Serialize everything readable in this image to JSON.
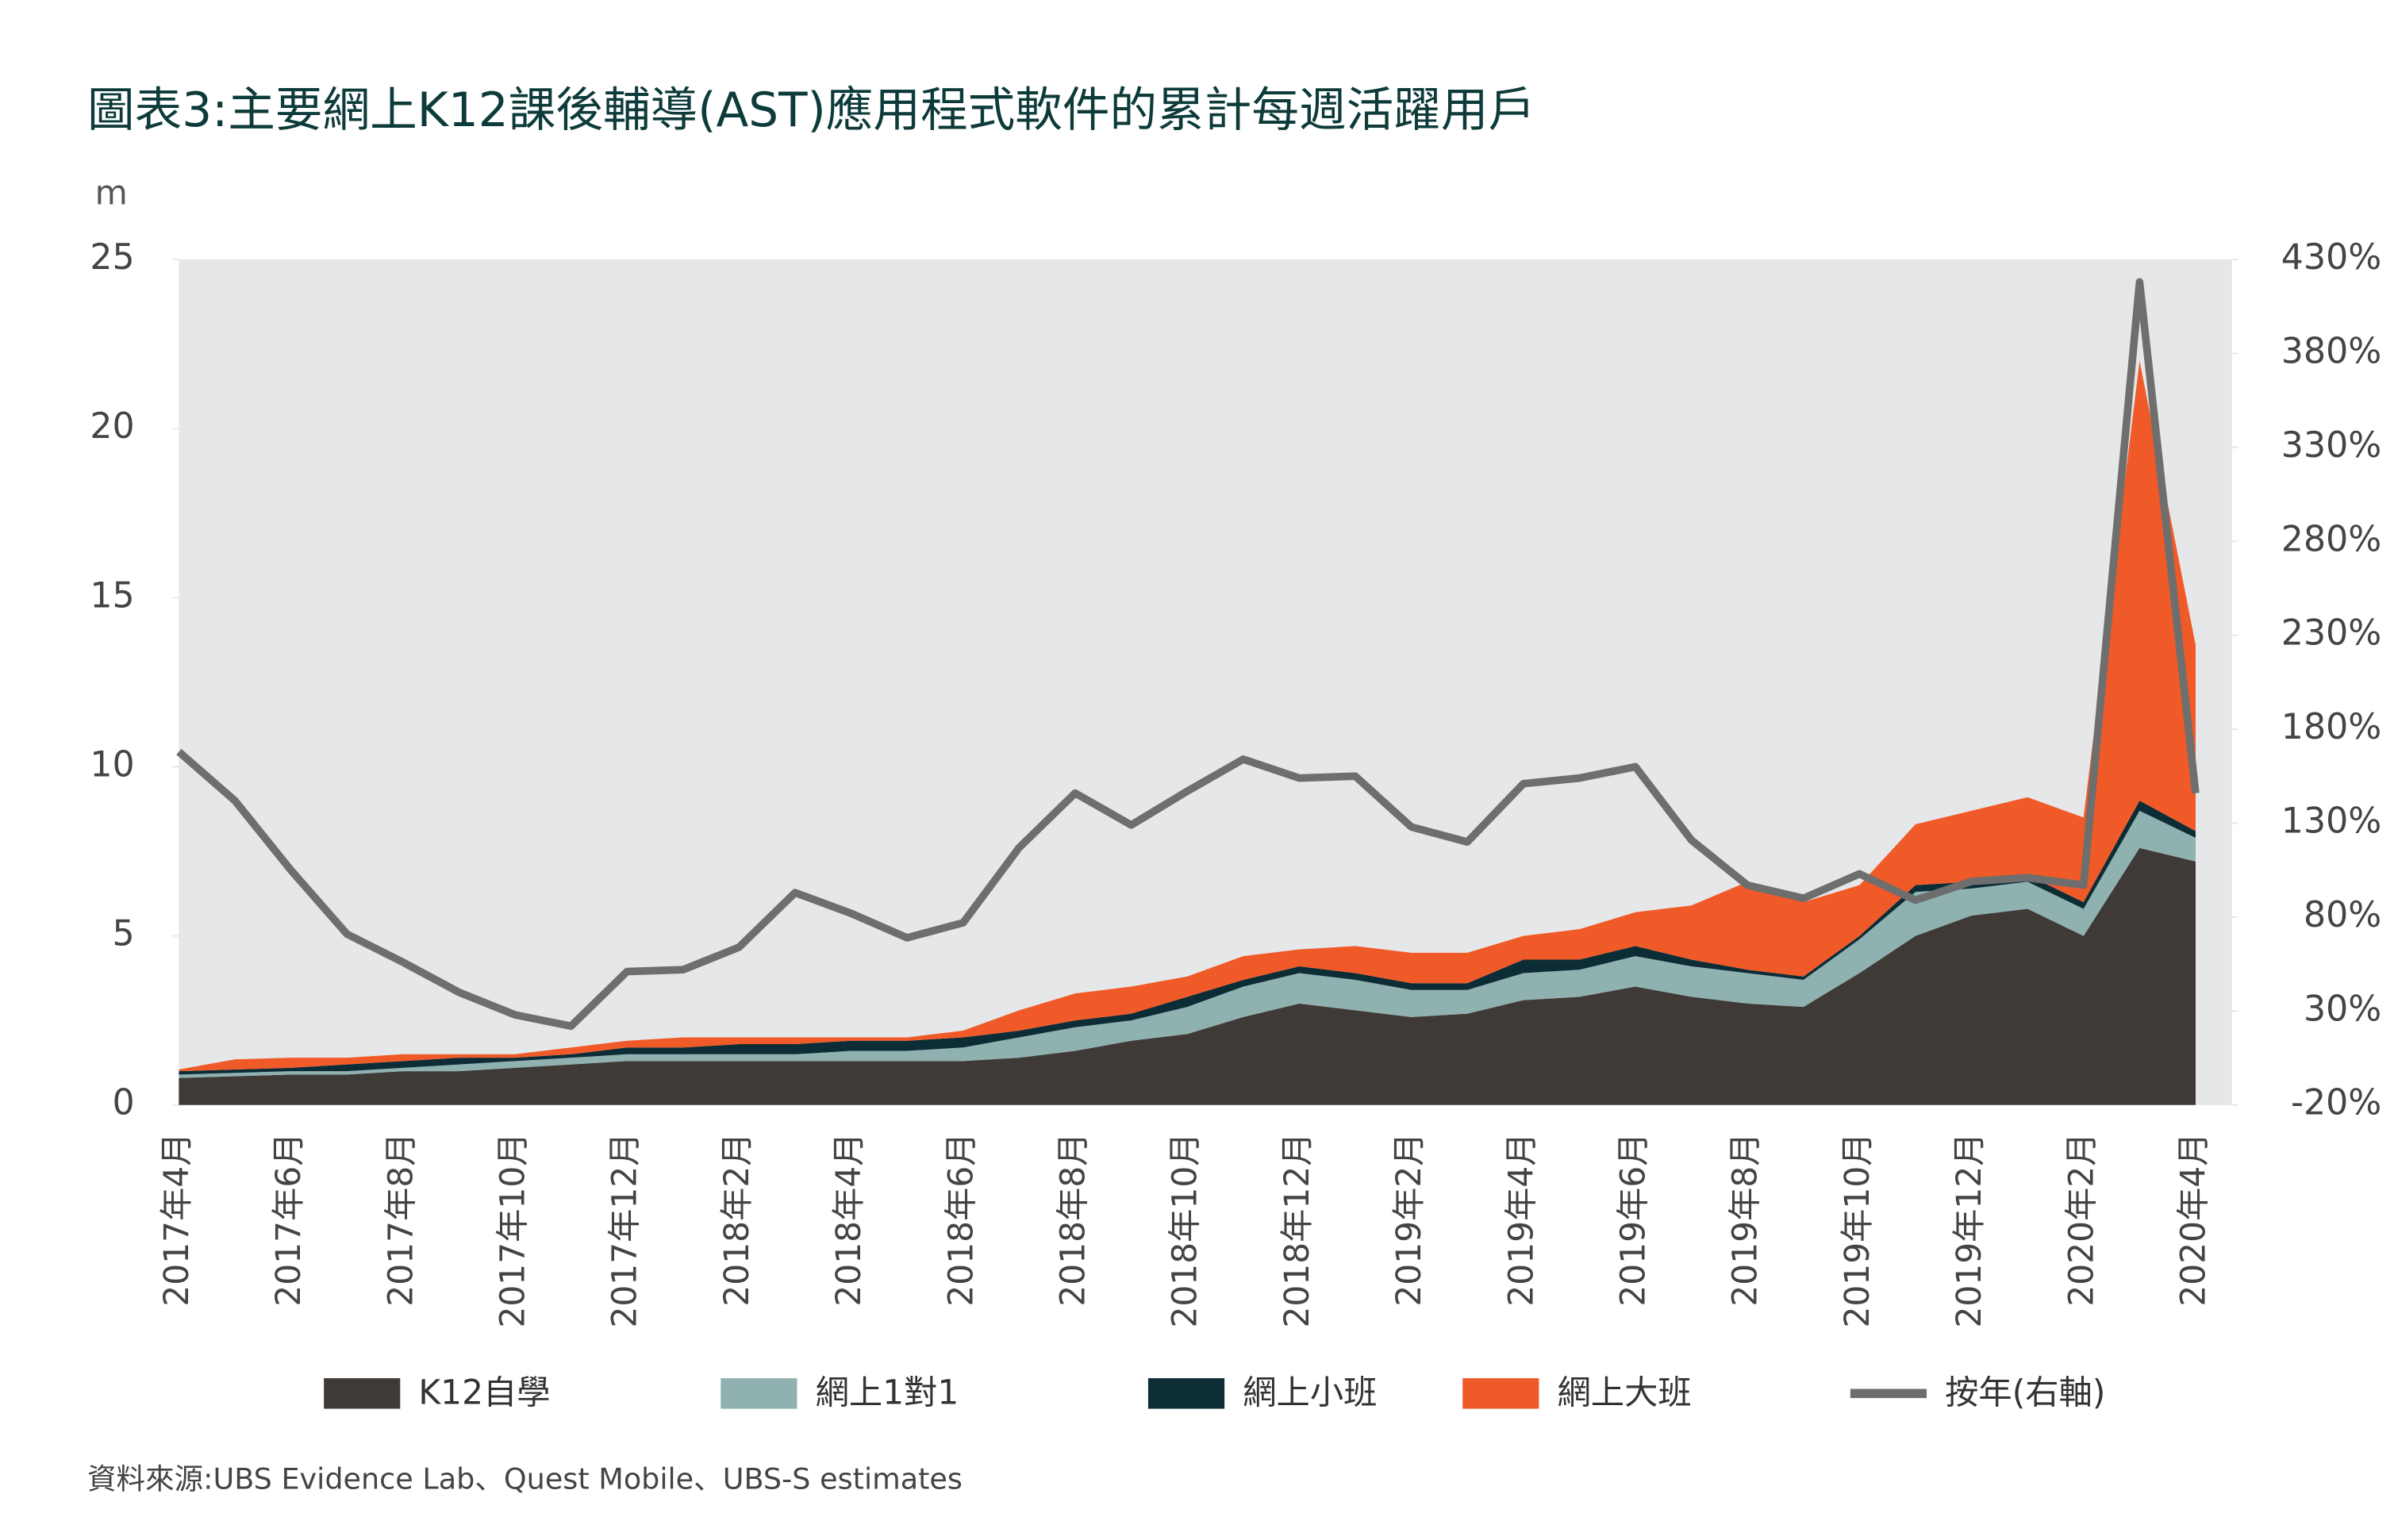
{
  "chart_data": {
    "type": "stacked_area",
    "title": "圖表3:主要網上K12課後輔導(AST)應用程式軟件的累計每週活躍用戶",
    "y_unit_label": "m",
    "source": "資料來源:UBS Evidence Lab、Quest Mobile、UBS-S estimates",
    "categories": [
      "2017年4月",
      null,
      "2017年6月",
      null,
      "2017年8月",
      null,
      "2017年10月",
      null,
      "2017年12月",
      null,
      "2018年2月",
      null,
      "2018年4月",
      null,
      "2018年6月",
      null,
      "2018年8月",
      null,
      "2018年10月",
      null,
      "2018年12月",
      null,
      "2019年2月",
      null,
      "2019年4月",
      null,
      "2019年6月",
      null,
      "2019年8月",
      null,
      "2019年10月",
      null,
      "2019年12月",
      null,
      "2020年2月",
      null,
      "2020年4月"
    ],
    "series": [
      {
        "name": "K12自學",
        "color": "#3f3a36",
        "values": [
          0.8,
          0.85,
          0.9,
          0.9,
          1.0,
          1.0,
          1.1,
          1.2,
          1.3,
          1.3,
          1.3,
          1.3,
          1.3,
          1.3,
          1.3,
          1.4,
          1.6,
          1.9,
          2.1,
          2.6,
          3.0,
          2.8,
          2.6,
          2.7,
          3.1,
          3.2,
          3.5,
          3.2,
          3.0,
          2.9,
          3.9,
          5.0,
          5.6,
          5.8,
          5.0,
          7.6,
          7.2
        ]
      },
      {
        "name": "網上1對1",
        "color": "#8fb1b0",
        "values": [
          0.1,
          0.1,
          0.1,
          0.1,
          0.1,
          0.2,
          0.2,
          0.2,
          0.2,
          0.2,
          0.2,
          0.2,
          0.3,
          0.3,
          0.4,
          0.6,
          0.7,
          0.6,
          0.8,
          0.9,
          0.9,
          0.9,
          0.8,
          0.7,
          0.8,
          0.8,
          0.9,
          0.9,
          0.9,
          0.8,
          1.0,
          1.3,
          0.8,
          0.8,
          0.8,
          1.1,
          0.7
        ]
      },
      {
        "name": "網上小班",
        "color": "#0d2d36",
        "values": [
          0.1,
          0.1,
          0.1,
          0.2,
          0.2,
          0.2,
          0.1,
          0.1,
          0.2,
          0.2,
          0.3,
          0.3,
          0.3,
          0.3,
          0.3,
          0.2,
          0.2,
          0.2,
          0.3,
          0.2,
          0.2,
          0.2,
          0.2,
          0.2,
          0.4,
          0.3,
          0.3,
          0.2,
          0.1,
          0.1,
          0.1,
          0.2,
          0.2,
          0.2,
          0.2,
          0.3,
          0.2
        ]
      },
      {
        "name": "網上大班",
        "color": "#f05a28",
        "values": [
          0.05,
          0.3,
          0.3,
          0.2,
          0.2,
          0.1,
          0.1,
          0.2,
          0.2,
          0.3,
          0.2,
          0.2,
          0.1,
          0.1,
          0.2,
          0.6,
          0.8,
          0.8,
          0.6,
          0.7,
          0.5,
          0.8,
          0.9,
          0.9,
          0.7,
          0.9,
          1.0,
          1.6,
          2.6,
          2.2,
          1.5,
          1.8,
          2.1,
          2.3,
          2.5,
          13,
          5.5
        ]
      },
      {
        "name": "按年(右軸)",
        "color": "#6e6e6e",
        "axis": "y2",
        "values": [
          168,
          142,
          105,
          71,
          56,
          40,
          28,
          22,
          51,
          52,
          64,
          93,
          82,
          69,
          77,
          117,
          146,
          129,
          147,
          164,
          154,
          155,
          128,
          120,
          151,
          154,
          160,
          121,
          97,
          90,
          103,
          89,
          99,
          101,
          97,
          418,
          146
        ]
      }
    ],
    "ylim": [
      0,
      25
    ],
    "yticks": [
      0,
      5,
      10,
      15,
      20,
      25
    ],
    "y2lim": [
      -20,
      430
    ],
    "y2ticks": [
      {
        "value": -20,
        "label": "-20%"
      },
      {
        "value": 30,
        "label": "30%"
      },
      {
        "value": 80,
        "label": "80%"
      },
      {
        "value": 130,
        "label": "130%"
      },
      {
        "value": 180,
        "label": "180%"
      },
      {
        "value": 230,
        "label": "230%"
      },
      {
        "value": 280,
        "label": "280%"
      },
      {
        "value": 330,
        "label": "330%"
      },
      {
        "value": 380,
        "label": "380%"
      },
      {
        "value": 430,
        "label": "430%"
      }
    ],
    "legend": "bottom"
  }
}
